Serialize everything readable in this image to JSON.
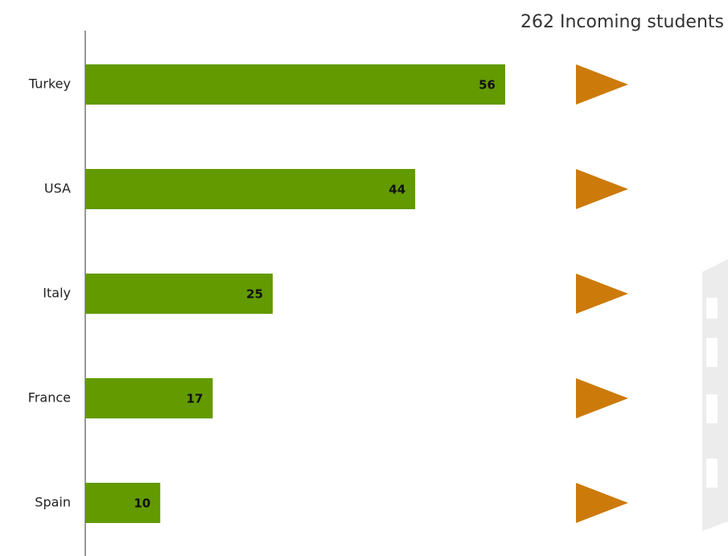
{
  "chart_data": {
    "type": "bar",
    "orientation": "horizontal",
    "title": "262 Incoming students",
    "categories": [
      "Turkey",
      "USA",
      "Italy",
      "France",
      "Spain"
    ],
    "values": [
      56,
      44,
      25,
      17,
      10
    ],
    "color": "#629a00"
  }
}
